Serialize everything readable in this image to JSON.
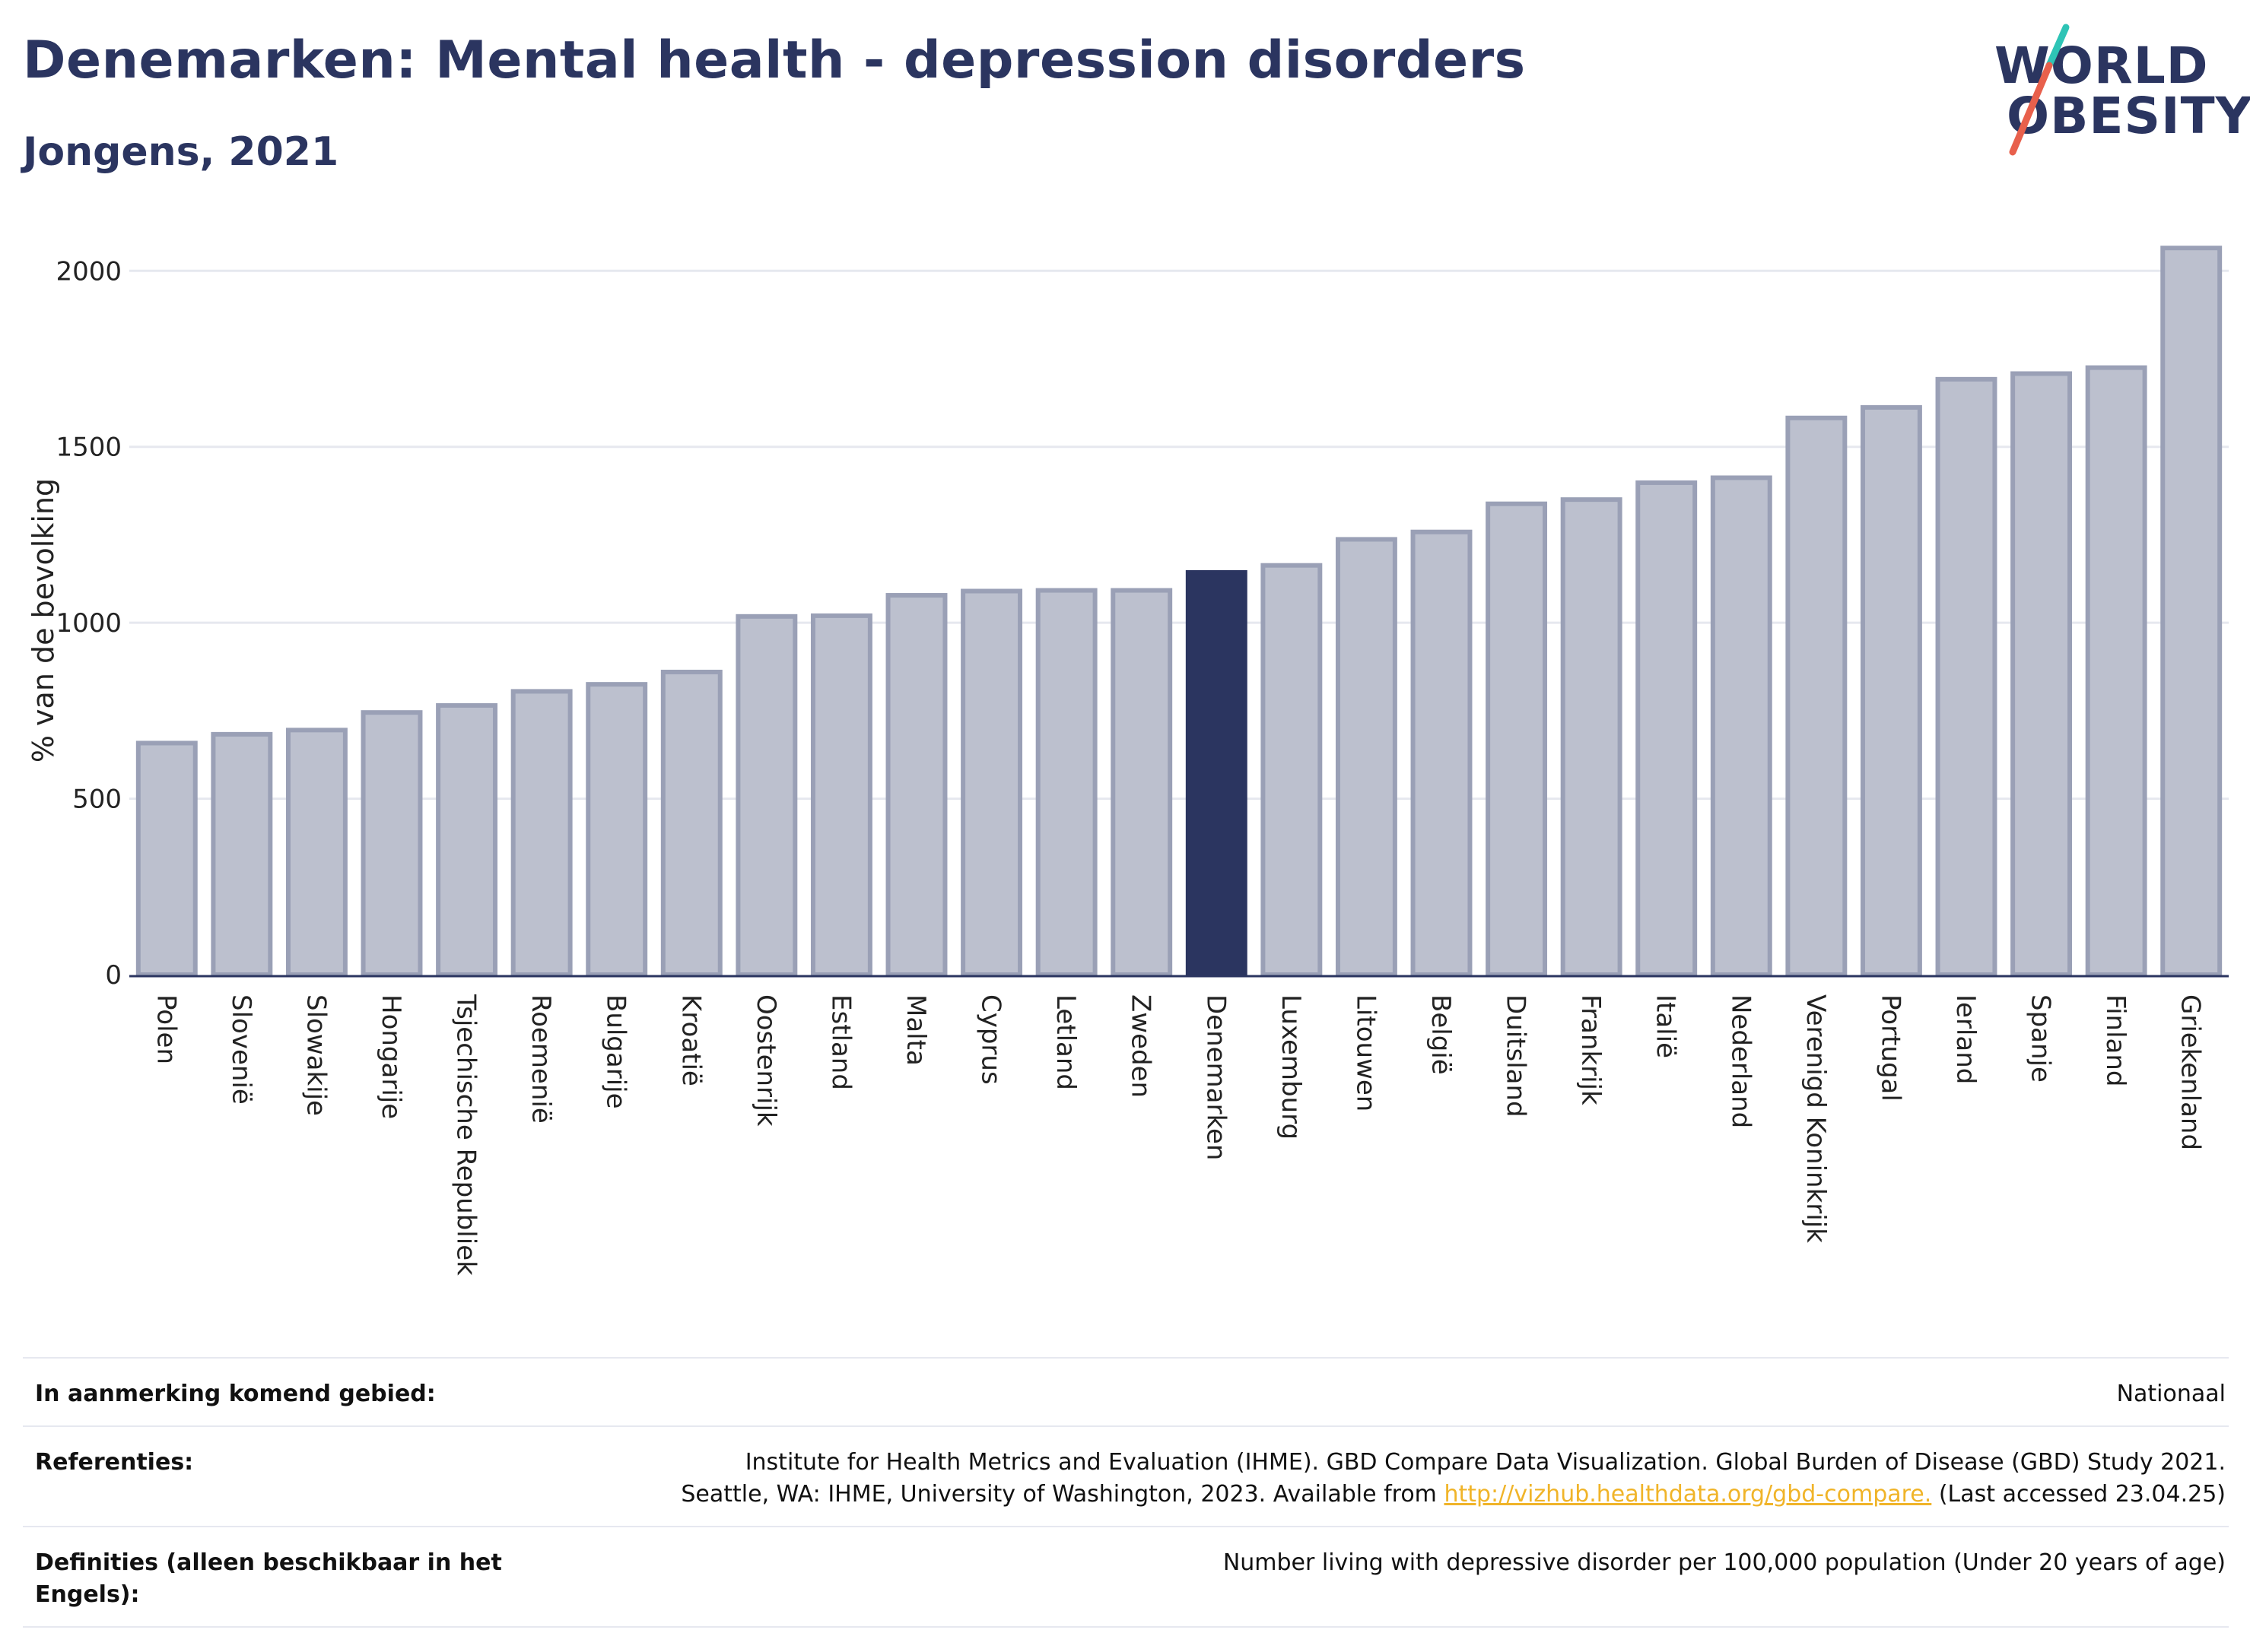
{
  "header": {
    "title": "Denemarken: Mental health - depression disorders",
    "subtitle": "Jongens, 2021"
  },
  "logo": {
    "line1": "WORLD",
    "line2": "OBESITY",
    "colors": {
      "text": "#2b3560",
      "slash_top": "#2ec4b6",
      "slash_bottom": "#e8604c"
    }
  },
  "colors": {
    "bar": "#bcc0ce",
    "bar_border": "#9aa0b6",
    "highlight": "#2b3560",
    "grid": "#e6e8ef"
  },
  "chart_data": {
    "type": "bar",
    "title": "",
    "xlabel": "",
    "ylabel": "% van de bevolking",
    "ylim": [
      0,
      2100
    ],
    "yticks": [
      0,
      500,
      1000,
      1500,
      2000
    ],
    "grid": true,
    "highlight": "Denemarken",
    "categories": [
      "Polen",
      "Slovenië",
      "Slowakije",
      "Hongarije",
      "Tsjechische Republiek",
      "Roemenië",
      "Bulgarije",
      "Kroatië",
      "Oostenrijk",
      "Estland",
      "Malta",
      "Cyprus",
      "Letland",
      "Zweden",
      "Denemarken",
      "Luxemburg",
      "Litouwen",
      "België",
      "Duitsland",
      "Frankrijk",
      "Italië",
      "Nederland",
      "Verenigd Koninkrijk",
      "Portugal",
      "Ierland",
      "Spanje",
      "Finland",
      "Griekenland"
    ],
    "values": [
      658,
      683,
      695,
      745,
      765,
      805,
      825,
      860,
      1018,
      1020,
      1078,
      1090,
      1092,
      1092,
      1143,
      1163,
      1237,
      1258,
      1338,
      1350,
      1398,
      1412,
      1582,
      1612,
      1692,
      1708,
      1725,
      2065
    ]
  },
  "info": {
    "rows": [
      {
        "key": "In aanmerking komend gebied:",
        "value": "Nationaal"
      },
      {
        "key": "Referenties:",
        "value_line1": "Institute for Health Metrics and Evaluation (IHME). GBD Compare Data Visualization. Global Burden of Disease (GBD) Study 2021.",
        "value_line2_pre": "Seattle, WA: IHME, University of Washington, 2023. Available from ",
        "link": "http://vizhub.healthdata.org/gbd-compare.",
        "value_line2_post": " (Last accessed 23.04.25)"
      },
      {
        "key": "Definities (alleen beschikbaar in het Engels):",
        "value": "Number living with depressive disorder per 100,000 population (Under 20 years of age)"
      }
    ]
  }
}
